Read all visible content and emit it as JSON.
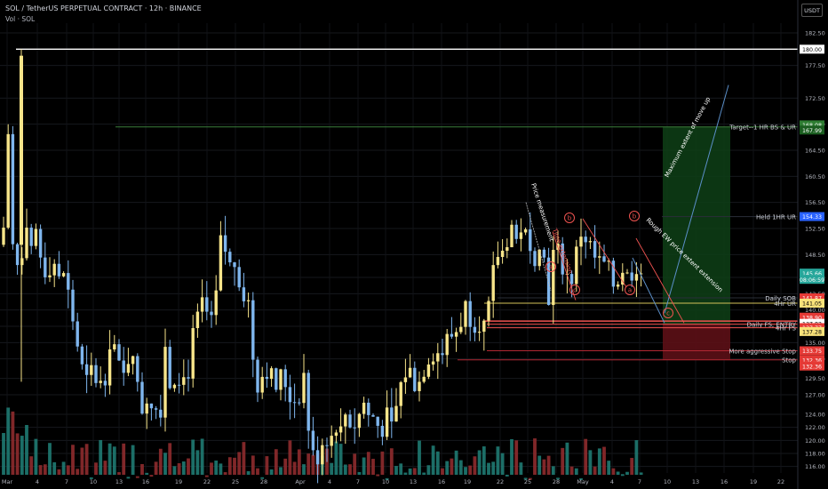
{
  "header": {
    "title": "SOL / TetherUS PERPETUAL CONTRACT · 12h · BINANCE",
    "volume_label": "Vol · SOL",
    "currency": "USDT"
  },
  "chart_data": {
    "type": "candlestick",
    "x_ticks": [
      "Mar",
      "4",
      "7",
      "10",
      "13",
      "16",
      "19",
      "22",
      "25",
      "28",
      "Apr",
      "4",
      "7",
      "10",
      "13",
      "16",
      "19",
      "22",
      "25",
      "28",
      "May",
      "4",
      "7",
      "10",
      "13",
      "16",
      "19",
      "22"
    ],
    "y_ticks": [
      116.0,
      118.0,
      120.0,
      122.0,
      124.0,
      127.0,
      129.5,
      132.5,
      135.0,
      137.5,
      140.0,
      142.5,
      145.0,
      148.5,
      152.5,
      156.5,
      160.5,
      164.5,
      168.5,
      172.5,
      177.5,
      182.5
    ],
    "ylim": [
      115,
      184
    ],
    "colors": {
      "up": "#f7e58a",
      "down": "#7fb6ee",
      "vol_up": "#1f7a72",
      "vol_down": "#8e2b2e"
    },
    "levels": [
      {
        "label": "Target--1 HR BS & UR",
        "price": 168.08,
        "color": "#3a7d3a"
      },
      {
        "label": "Held 1HR UR",
        "price": 154.33,
        "color": "#2a2e39"
      },
      {
        "label": "Daily SOB",
        "price": 141.87,
        "color": "#2a2e39"
      },
      {
        "label": "4Hr UR",
        "price": 141.05,
        "color": "#d4c35a"
      },
      {
        "label": "Daily FS, ENTRY",
        "price": 137.82,
        "color": "#ef5350"
      },
      {
        "label": "4Hr FS",
        "price": 137.28,
        "color": "#ef5350"
      },
      {
        "label": "More aggressive Stop",
        "price": 133.75,
        "color": "#b22833"
      },
      {
        "label": "Stop",
        "price": 132.36,
        "color": "#b22833"
      }
    ],
    "price_tags": [
      {
        "text": "180.00",
        "price": 180.0,
        "bg": "#ffffff",
        "fg": "#000000"
      },
      {
        "text": "168.08",
        "price": 168.4,
        "bg": "#2e7d32",
        "fg": "#ffffff"
      },
      {
        "text": "167.99",
        "price": 167.6,
        "bg": "#1b5e20",
        "fg": "#ffffff"
      },
      {
        "text": "154.33",
        "price": 154.33,
        "bg": "#2962ff",
        "fg": "#ffffff"
      },
      {
        "text": "145.66",
        "price": 145.66,
        "bg": "#26a69a",
        "fg": "#ffffff"
      },
      {
        "text": "08:06:59",
        "price": 144.7,
        "bg": "#26a69a",
        "fg": "#ffffff"
      },
      {
        "text": "141.87",
        "price": 141.87,
        "bg": "#e53935",
        "fg": "#ffffff"
      },
      {
        "text": "141.05",
        "price": 141.05,
        "bg": "#f9e27a",
        "fg": "#000000"
      },
      {
        "text": "138.90",
        "price": 138.9,
        "bg": "#e53935",
        "fg": "#ffffff"
      },
      {
        "text": "137.82",
        "price": 137.95,
        "bg": "#ffffff",
        "fg": "#000000"
      },
      {
        "text": "137.77",
        "price": 137.3,
        "bg": "#e53935",
        "fg": "#ffffff"
      },
      {
        "text": "137.28",
        "price": 136.7,
        "bg": "#f9e27a",
        "fg": "#000000"
      },
      {
        "text": "133.75",
        "price": 133.75,
        "bg": "#e53935",
        "fg": "#ffffff"
      },
      {
        "text": "132.36",
        "price": 132.36,
        "bg": "#e53935",
        "fg": "#ffffff"
      },
      {
        "text": "132.36",
        "price": 131.4,
        "bg": "#e53935",
        "fg": "#ffffff"
      }
    ],
    "annotations": [
      {
        "text": "Price measurement",
        "price": 146.0,
        "color": "#ffffff"
      },
      {
        "text": "Time extension",
        "price": 145.5,
        "color": "#ef5350"
      },
      {
        "text": "Rough EW price extent extension",
        "price": 143.0,
        "color": "#ffffff"
      },
      {
        "text": "Maximum extent of move up",
        "price": 158.0,
        "color": "#ffffff"
      }
    ],
    "wave_labels": [
      "a",
      "b",
      "c",
      "a",
      "b",
      "c"
    ]
  }
}
